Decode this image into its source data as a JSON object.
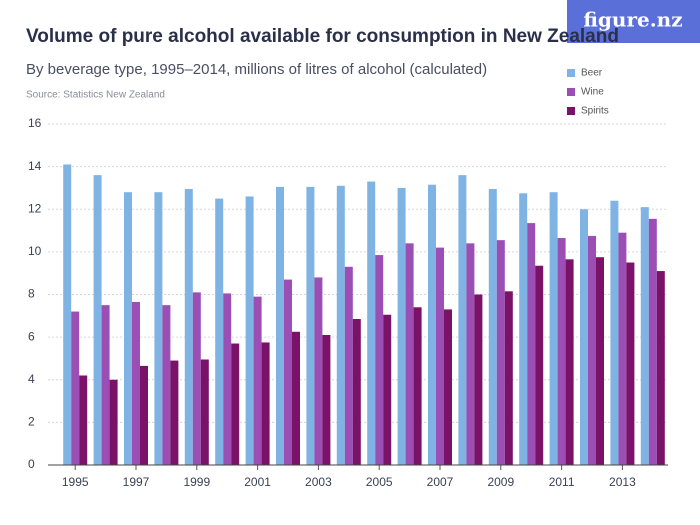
{
  "chart_data": {
    "type": "bar",
    "title": "Volume of pure alcohol available for consumption in New Zealand",
    "subtitle": "By beverage type, 1995–2014, millions of litres of alcohol (calculated)",
    "source": "Source: Statistics New Zealand",
    "logo": "figure.nz",
    "categories": [
      "1995",
      null,
      "1997",
      null,
      "1999",
      null,
      "2001",
      null,
      "2003",
      null,
      "2005",
      null,
      "2007",
      null,
      "2009",
      null,
      "2011",
      null,
      "2013",
      null
    ],
    "series": [
      {
        "name": "Beer",
        "color": "#7fb3e3",
        "values": [
          14.1,
          13.6,
          12.8,
          12.8,
          12.95,
          12.5,
          12.6,
          13.05,
          13.05,
          13.1,
          13.3,
          13.0,
          13.15,
          13.6,
          12.95,
          12.75,
          12.8,
          12.0,
          12.4,
          12.1
        ]
      },
      {
        "name": "Wine",
        "color": "#9b4fb5",
        "values": [
          7.2,
          7.5,
          7.65,
          7.5,
          8.1,
          8.05,
          7.9,
          8.7,
          8.8,
          9.3,
          9.85,
          10.4,
          10.2,
          10.4,
          10.55,
          11.35,
          10.65,
          10.75,
          10.9,
          11.55
        ]
      },
      {
        "name": "Spirits",
        "color": "#7a1268",
        "values": [
          4.2,
          4.0,
          4.65,
          4.9,
          4.95,
          5.7,
          5.75,
          6.25,
          6.1,
          6.85,
          7.05,
          7.4,
          7.3,
          8.0,
          8.15,
          9.35,
          9.65,
          9.75,
          9.5,
          9.1
        ]
      }
    ],
    "ylim": [
      0,
      16
    ],
    "yticks": [
      0,
      2,
      4,
      6,
      8,
      10,
      12,
      14,
      16
    ],
    "grid": true,
    "legend": "top-right"
  }
}
